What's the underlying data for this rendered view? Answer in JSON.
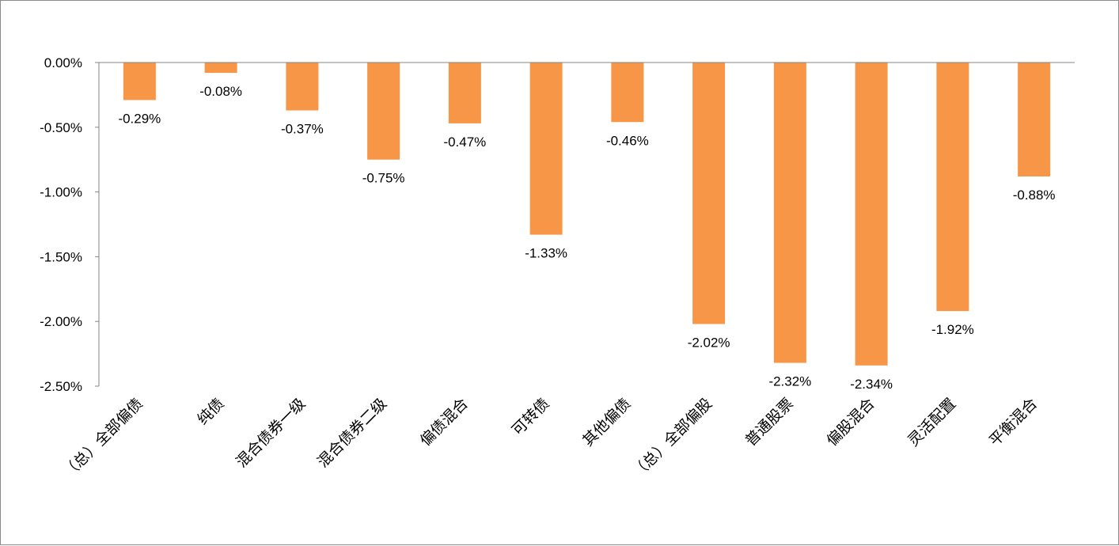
{
  "chart_data": {
    "type": "bar",
    "categories": [
      "（总）全部偏债",
      "纯债",
      "混合债券一级",
      "混合债券二级",
      "偏债混合",
      "可转债",
      "其他偏债",
      "（总）全部偏股",
      "普通股票",
      "偏股混合",
      "灵活配置",
      "平衡混合"
    ],
    "values": [
      -0.29,
      -0.08,
      -0.37,
      -0.75,
      -0.47,
      -1.33,
      -0.46,
      -2.02,
      -2.32,
      -2.34,
      -1.92,
      -0.88
    ],
    "data_labels": [
      "-0.29%",
      "-0.08%",
      "-0.37%",
      "-0.75%",
      "-0.47%",
      "-1.33%",
      "-0.46%",
      "-2.02%",
      "-2.32%",
      "-2.34%",
      "-1.92%",
      "-0.88%"
    ],
    "y_ticks": [
      0,
      -0.5,
      -1.0,
      -1.5,
      -2.0,
      -2.5
    ],
    "y_tick_labels": [
      "0.00%",
      "-0.50%",
      "-1.00%",
      "-1.50%",
      "-2.00%",
      "-2.50%"
    ],
    "ylim": [
      -2.5,
      0
    ],
    "title": "",
    "xlabel": "",
    "ylabel": "",
    "grid": false,
    "legend": "none",
    "bar_color": "#F79646",
    "axis_color": "#868686"
  }
}
